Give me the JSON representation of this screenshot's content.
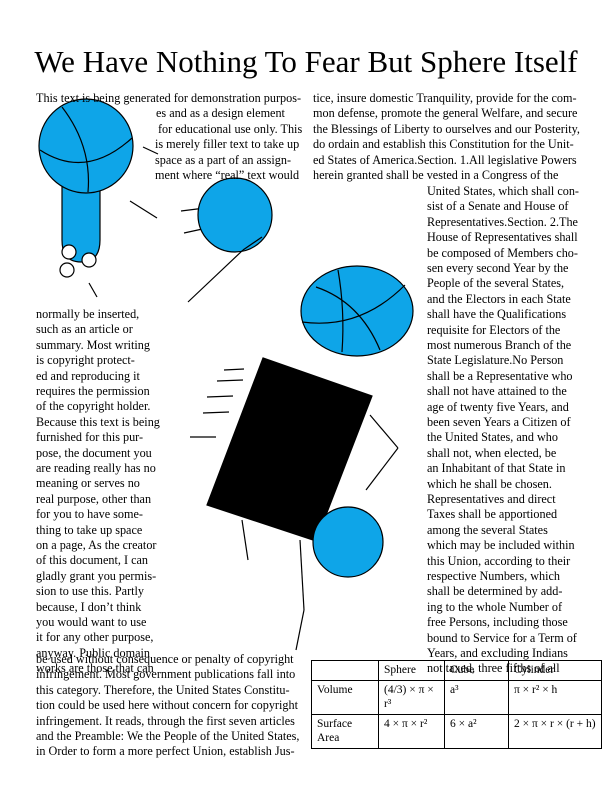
{
  "title": "We Have Nothing To Fear But Sphere Itself",
  "colors": {
    "sphere_fill": "#0ea5e8",
    "body_fill": "#000000",
    "stroke": "#000000"
  },
  "left_text_top": [
    "This text is being generated for demonstration purpos-",
    "es and as a design element",
    "for educational use only. This",
    "is merely filler text to take up",
    "space as a part of an assign-",
    "ment where “real” text would"
  ],
  "left_text_col": [
    "normally be inserted,",
    "such as an article or",
    "summary. Most writing",
    "is copyright protect-",
    "ed and reproducing it",
    "requires the permission",
    "of the copyright holder.",
    "Because this text is being",
    "furnished for this pur-",
    "pose, the document you",
    "are reading really has no",
    "meaning or serves no",
    "real purpose, other than",
    "for you to have some-",
    "thing to take up space",
    "on a page, As the creator",
    "of this document, I can",
    "gladly grant you permis-",
    "sion to use this. Partly",
    "because, I don’t think",
    "you would want to use",
    "it for any other purpose,",
    "anyway. Public domain",
    "works are those that can"
  ],
  "left_text_bottom": [
    "be used without consequence or penalty of copyright",
    "infringement. Most government publications fall into",
    "this category. Therefore, the United States Constitu-",
    "tion could be used here without concern for copyright",
    "infringement. It reads, through the first seven articles",
    "and the Preamble: We the People of the United States,",
    "in Order to form a more perfect Union, establish Jus-"
  ],
  "right_text_top": [
    "tice, insure domestic Tranquility, provide for the com-",
    "mon defense, promote the general Welfare, and secure",
    "the Blessings of Liberty to ourselves and our Posterity,",
    "do ordain and establish this Constitution for the Unit-",
    "ed States of America.Section. 1.All legislative Powers",
    "herein granted shall be vested in a Congress of the"
  ],
  "right_text_col": [
    "United States, which shall con-",
    "sist of a Senate and House of",
    "Representatives.Section. 2.The",
    "House of Representatives shall",
    "be composed of Members cho-",
    "sen every second Year by the",
    "People of the several States,",
    "and the Electors in each State",
    "shall have the Qualifications",
    "requisite for Electors of the",
    "most numerous Branch of the",
    "State Legislature.No Person",
    "shall be a Representative who",
    "shall not have attained to the",
    "age of twenty five Years, and",
    "been seven Years a Citizen of",
    "the United States, and who",
    "shall not, when elected, be",
    "an Inhabitant of that State in",
    "which he shall be chosen.",
    "Representatives and direct",
    "Taxes shall be apportioned",
    "among the several States",
    "which may be included within",
    "this Union, according to their",
    "respective Numbers, which",
    "shall be determined by add-",
    "ing to the whole Number of",
    "free Persons, including those",
    "bound to Service for a Term of",
    "Years, and excluding Indians",
    "not taxed, three fifths of all"
  ],
  "table": {
    "headers": [
      "",
      "Sphere",
      "Cube",
      "Cylinder"
    ],
    "rows": [
      {
        "label": "Volume",
        "sphere": "(4/3) × π × r³",
        "cube": "a³",
        "cylinder": "π × r² × h"
      },
      {
        "label": "Surface Area",
        "sphere": "4 × π × r²",
        "cube": "6 × a²",
        "cylinder": "2 × π × r × (r + h)"
      }
    ]
  }
}
